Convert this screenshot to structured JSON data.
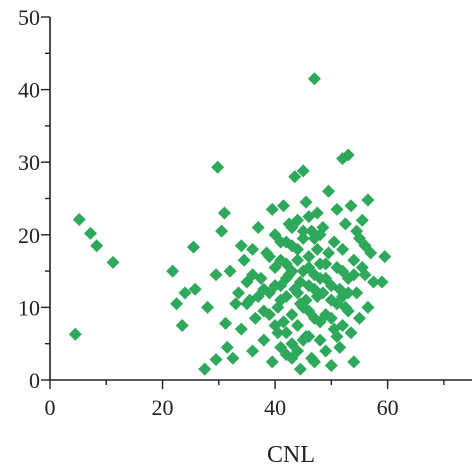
{
  "chart_data": {
    "type": "scatter",
    "title": "",
    "xlabel": "CNL",
    "ylabel": "",
    "xlim": [
      0,
      75
    ],
    "ylim": [
      0,
      50
    ],
    "xticks": [
      0,
      20,
      40,
      60
    ],
    "yticks": [
      0,
      10,
      20,
      30,
      40,
      50
    ],
    "minor_xticks": [
      10,
      30,
      50,
      70
    ],
    "minor_yticks": [
      5,
      15,
      25,
      35,
      45
    ],
    "grid": false,
    "legend": "none",
    "marker": "diamond",
    "color": "#2ea85a",
    "series": [
      {
        "points": [
          [
            4.5,
            6.3
          ],
          [
            5.2,
            22.1
          ],
          [
            7.2,
            20.2
          ],
          [
            8.3,
            18.5
          ],
          [
            11.2,
            16.2
          ],
          [
            21.8,
            15.0
          ],
          [
            22.5,
            10.5
          ],
          [
            23.5,
            7.5
          ],
          [
            24.0,
            12.0
          ],
          [
            25.5,
            18.3
          ],
          [
            25.8,
            12.5
          ],
          [
            27.5,
            1.5
          ],
          [
            28.0,
            10.0
          ],
          [
            29.5,
            14.5
          ],
          [
            29.8,
            29.3
          ],
          [
            29.5,
            2.8
          ],
          [
            30.5,
            20.5
          ],
          [
            31.0,
            23.0
          ],
          [
            31.2,
            7.8
          ],
          [
            31.5,
            4.5
          ],
          [
            32.0,
            15.0
          ],
          [
            32.5,
            3.0
          ],
          [
            33.0,
            10.5
          ],
          [
            34.0,
            7.0
          ],
          [
            34.5,
            16.5
          ],
          [
            35.0,
            13.5
          ],
          [
            35.5,
            11.0
          ],
          [
            36.0,
            18.0
          ],
          [
            36.5,
            8.5
          ],
          [
            36.0,
            4.0
          ],
          [
            37.0,
            21.0
          ],
          [
            37.5,
            14.0
          ],
          [
            38.0,
            9.5
          ],
          [
            38.0,
            5.5
          ],
          [
            38.5,
            17.5
          ],
          [
            39.0,
            12.0
          ],
          [
            39.5,
            23.5
          ],
          [
            39.5,
            2.5
          ],
          [
            40.0,
            15.5
          ],
          [
            40.5,
            10.0
          ],
          [
            40.5,
            6.5
          ],
          [
            41.0,
            19.0
          ],
          [
            41.0,
            13.0
          ],
          [
            41.5,
            8.0
          ],
          [
            41.5,
            24.0
          ],
          [
            42.0,
            16.0
          ],
          [
            42.0,
            11.5
          ],
          [
            42.0,
            3.5
          ],
          [
            42.5,
            21.5
          ],
          [
            42.5,
            14.5
          ],
          [
            43.0,
            9.0
          ],
          [
            43.0,
            5.0
          ],
          [
            43.0,
            18.5
          ],
          [
            43.5,
            12.5
          ],
          [
            43.5,
            28.0
          ],
          [
            44.0,
            16.5
          ],
          [
            44.0,
            7.5
          ],
          [
            44.0,
            22.0
          ],
          [
            44.5,
            10.5
          ],
          [
            44.5,
            13.5
          ],
          [
            44.5,
            1.5
          ],
          [
            45.0,
            19.5
          ],
          [
            45.0,
            15.0
          ],
          [
            45.0,
            28.8
          ],
          [
            45.5,
            11.0
          ],
          [
            45.5,
            6.0
          ],
          [
            45.5,
            24.5
          ],
          [
            46.0,
            17.0
          ],
          [
            46.0,
            9.5
          ],
          [
            46.0,
            13.0
          ],
          [
            46.5,
            20.5
          ],
          [
            46.5,
            3.0
          ],
          [
            47.0,
            41.5
          ],
          [
            47.0,
            14.5
          ],
          [
            47.0,
            8.5
          ],
          [
            47.5,
            18.0
          ],
          [
            47.5,
            11.5
          ],
          [
            47.5,
            23.0
          ],
          [
            48.0,
            16.0
          ],
          [
            48.0,
            5.5
          ],
          [
            48.5,
            12.0
          ],
          [
            48.5,
            21.0
          ],
          [
            49.0,
            14.0
          ],
          [
            49.0,
            9.0
          ],
          [
            49.5,
            26.0
          ],
          [
            49.5,
            17.5
          ],
          [
            50.0,
            11.0
          ],
          [
            50.0,
            2.0
          ],
          [
            50.5,
            19.0
          ],
          [
            50.5,
            7.0
          ],
          [
            51.0,
            15.5
          ],
          [
            51.0,
            23.5
          ],
          [
            51.5,
            12.5
          ],
          [
            51.5,
            4.5
          ],
          [
            52.0,
            30.5
          ],
          [
            52.0,
            18.0
          ],
          [
            52.5,
            10.0
          ],
          [
            52.5,
            21.5
          ],
          [
            53.0,
            14.0
          ],
          [
            53.0,
            31.0
          ],
          [
            53.5,
            6.5
          ],
          [
            53.5,
            24.0
          ],
          [
            54.0,
            16.5
          ],
          [
            54.0,
            2.5
          ],
          [
            54.5,
            12.0
          ],
          [
            55.0,
            19.5
          ],
          [
            55.0,
            8.5
          ],
          [
            55.5,
            22.0
          ],
          [
            56.0,
            14.5
          ],
          [
            56.5,
            24.8
          ],
          [
            56.5,
            10.0
          ],
          [
            57.0,
            17.5
          ],
          [
            57.5,
            13.5
          ],
          [
            59.5,
            17.0
          ],
          [
            59.0,
            13.5
          ],
          [
            40.0,
            13.0
          ],
          [
            41.0,
            11.0
          ],
          [
            42.0,
            14.0
          ],
          [
            43.0,
            15.0
          ],
          [
            44.0,
            12.0
          ],
          [
            45.0,
            10.0
          ],
          [
            46.0,
            15.5
          ],
          [
            47.0,
            12.5
          ],
          [
            48.0,
            14.0
          ],
          [
            49.0,
            16.0
          ],
          [
            50.0,
            13.0
          ],
          [
            51.0,
            10.5
          ],
          [
            52.0,
            15.0
          ],
          [
            53.0,
            12.0
          ],
          [
            54.0,
            14.5
          ],
          [
            39.0,
            17.0
          ],
          [
            40.0,
            20.0
          ],
          [
            41.0,
            16.5
          ],
          [
            42.0,
            19.0
          ],
          [
            43.0,
            21.0
          ],
          [
            44.0,
            18.0
          ],
          [
            45.0,
            20.5
          ],
          [
            46.0,
            22.5
          ],
          [
            47.0,
            19.5
          ],
          [
            48.0,
            20.0
          ],
          [
            38.0,
            12.5
          ],
          [
            39.0,
            9.0
          ],
          [
            40.0,
            7.5
          ],
          [
            41.0,
            4.5
          ],
          [
            42.0,
            6.5
          ],
          [
            43.0,
            3.0
          ],
          [
            44.0,
            4.0
          ],
          [
            45.0,
            5.5
          ],
          [
            46.0,
            6.0
          ],
          [
            47.0,
            2.5
          ],
          [
            48.0,
            8.0
          ],
          [
            49.0,
            4.0
          ],
          [
            50.0,
            8.5
          ],
          [
            51.0,
            6.0
          ],
          [
            52.0,
            7.5
          ],
          [
            35.0,
            10.5
          ],
          [
            36.0,
            14.5
          ],
          [
            37.0,
            11.5
          ],
          [
            33.5,
            12.0
          ],
          [
            34.0,
            18.5
          ],
          [
            55.5,
            15.5
          ],
          [
            56.0,
            18.5
          ],
          [
            54.5,
            20.5
          ],
          [
            53.0,
            9.5
          ],
          [
            52.0,
            11.5
          ]
        ]
      }
    ]
  }
}
